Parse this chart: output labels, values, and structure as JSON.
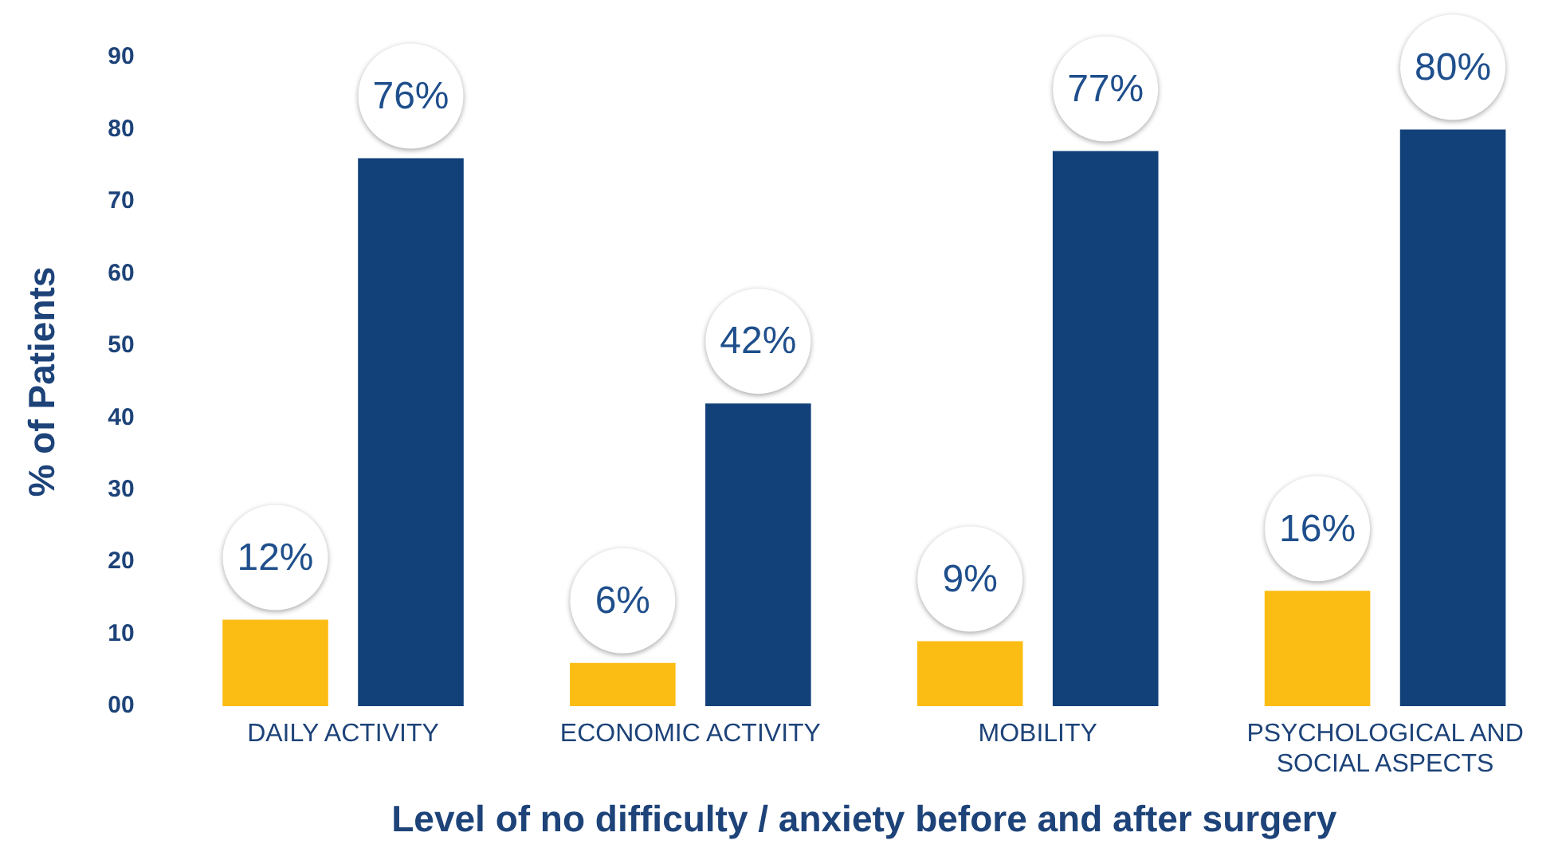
{
  "chart_data": {
    "type": "bar",
    "xlabel": "Level of no difficulty / anxiety before and after surgery",
    "ylabel": "% of Patients",
    "categories": [
      "DAILY ACTIVITY",
      "ECONOMIC ACTIVITY",
      "MOBILITY",
      "PSYCHOLOGICAL AND SOCIAL ASPECTS"
    ],
    "series": [
      {
        "color": "#fbbd14",
        "values": [
          12,
          6,
          9,
          16
        ],
        "value_labels": [
          "12%",
          "6%",
          "9%",
          "16%"
        ]
      },
      {
        "color": "#12417a",
        "values": [
          76,
          42,
          77,
          80
        ],
        "value_labels": [
          "76%",
          "42%",
          "77%",
          "80%"
        ]
      }
    ],
    "ylim": [
      0,
      90
    ],
    "yticks": [
      {
        "value": 0,
        "label": "00"
      },
      10,
      20,
      30,
      40,
      50,
      60,
      70,
      80,
      90
    ],
    "grid": false,
    "legend": false
  }
}
